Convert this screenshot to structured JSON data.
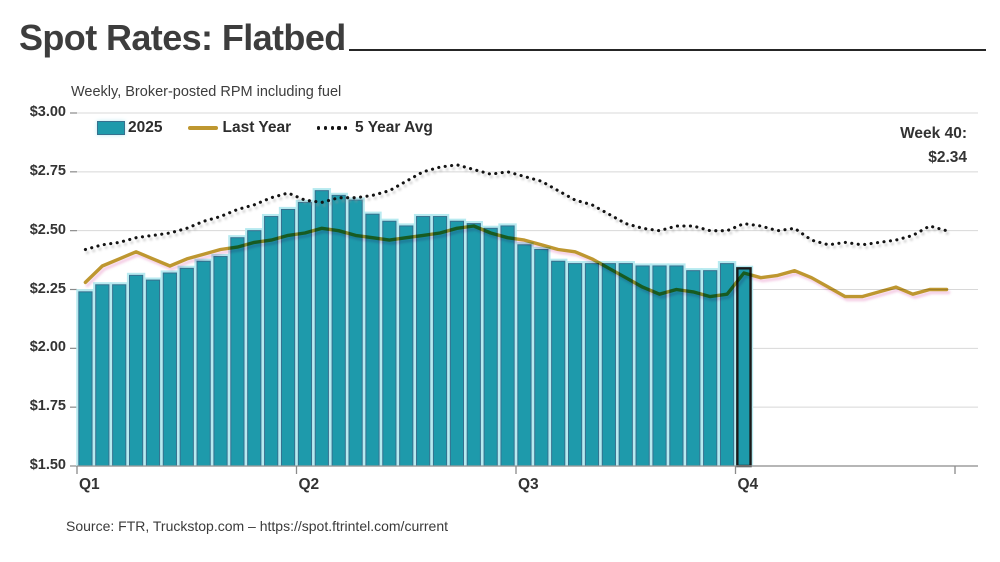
{
  "title": "Spot Rates: Flatbed",
  "subtitle": "Weekly, Broker-posted RPM including fuel",
  "annotation": {
    "week_label": "Week 40:",
    "value_label": "$2.34"
  },
  "source": "Source: FTR, Truckstop.com – https://spot.ftrintel.com/current",
  "legend": [
    {
      "label": "2025",
      "swatch": "bar"
    },
    {
      "label": "Last Year",
      "swatch": "line"
    },
    {
      "label": "5 Year Avg",
      "swatch": "dotted"
    }
  ],
  "colors": {
    "bar": "#1E9AAB",
    "bar_glow": "#B7EAF0",
    "bar_edge": "#37708E",
    "highlight_outline": "#1A1A1A",
    "last_year_line": "#BE9730",
    "five_year_avg_line": "#141414",
    "gridline": "#D8D8D8",
    "axis": "#9A9A9A",
    "tick": "#8A8A8A"
  },
  "chart_data": {
    "type": "bar",
    "title": "Spot Rates: Flatbed",
    "subtitle": "Weekly, Broker-posted RPM including fuel",
    "x_unit": "week",
    "weeks": 52,
    "ylim": [
      1.5,
      3.0
    ],
    "ytick_step": 0.25,
    "ytick_labels": [
      "$3.00",
      "$2.75",
      "$2.50",
      "$2.25",
      "$2.00",
      "$1.75",
      "$1.50"
    ],
    "grid": true,
    "legend_position": "top-left",
    "x_axis": {
      "quarter_labels": [
        "Q1",
        "Q2",
        "Q3",
        "Q4"
      ],
      "weeks_per_quarter": 13
    },
    "highlight": {
      "week": 40,
      "value": 2.34,
      "label": "Week 40: $2.34"
    },
    "series": [
      {
        "name": "2025",
        "type": "bar",
        "values": [
          2.24,
          2.27,
          2.27,
          2.31,
          2.29,
          2.32,
          2.34,
          2.37,
          2.39,
          2.47,
          2.5,
          2.56,
          2.59,
          2.62,
          2.67,
          2.65,
          2.63,
          2.57,
          2.54,
          2.52,
          2.56,
          2.56,
          2.54,
          2.53,
          2.51,
          2.52,
          2.44,
          2.42,
          2.37,
          2.36,
          2.36,
          2.36,
          2.36,
          2.35,
          2.35,
          2.35,
          2.33,
          2.33,
          2.36,
          2.34
        ]
      },
      {
        "name": "Last Year",
        "type": "line",
        "values": [
          2.28,
          2.35,
          2.38,
          2.41,
          2.38,
          2.35,
          2.38,
          2.4,
          2.42,
          2.43,
          2.45,
          2.46,
          2.48,
          2.49,
          2.51,
          2.5,
          2.48,
          2.47,
          2.46,
          2.47,
          2.48,
          2.49,
          2.51,
          2.52,
          2.49,
          2.47,
          2.46,
          2.44,
          2.42,
          2.41,
          2.38,
          2.34,
          2.3,
          2.26,
          2.23,
          2.25,
          2.24,
          2.22,
          2.23,
          2.32,
          2.3,
          2.31,
          2.33,
          2.3,
          2.26,
          2.22,
          2.22,
          2.24,
          2.26,
          2.23,
          2.25,
          2.25
        ]
      },
      {
        "name": "5 Year Avg",
        "type": "dotted-line",
        "values": [
          2.42,
          2.44,
          2.45,
          2.47,
          2.48,
          2.49,
          2.51,
          2.54,
          2.56,
          2.59,
          2.61,
          2.64,
          2.66,
          2.63,
          2.62,
          2.64,
          2.64,
          2.65,
          2.67,
          2.71,
          2.75,
          2.77,
          2.78,
          2.76,
          2.74,
          2.75,
          2.73,
          2.71,
          2.67,
          2.63,
          2.61,
          2.57,
          2.53,
          2.51,
          2.5,
          2.52,
          2.52,
          2.5,
          2.5,
          2.53,
          2.52,
          2.5,
          2.51,
          2.46,
          2.44,
          2.45,
          2.44,
          2.45,
          2.46,
          2.48,
          2.52,
          2.5
        ]
      }
    ]
  }
}
